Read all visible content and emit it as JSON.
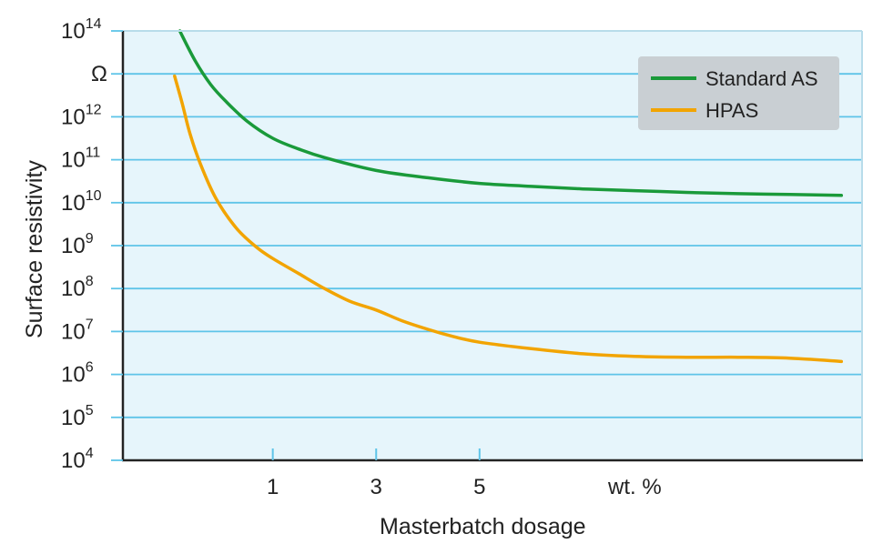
{
  "chart_data": {
    "type": "line",
    "title": "",
    "xlabel": "Masterbatch dosage",
    "ylabel": "Surface resistivity",
    "x_unit_label": "wt. %",
    "x_ticks": [
      1,
      3,
      5
    ],
    "xlim": [
      -1.9,
      12.4
    ],
    "y_scale": "log",
    "ylim_exponent": [
      4,
      14
    ],
    "y_ticks": [
      {
        "label": "10",
        "exp": "14",
        "value": 14
      },
      {
        "label": "Ω",
        "exp": "",
        "value": 13
      },
      {
        "label": "10",
        "exp": "12",
        "value": 12
      },
      {
        "label": "10",
        "exp": "11",
        "value": 11
      },
      {
        "label": "10",
        "exp": "10",
        "value": 10
      },
      {
        "label": "10",
        "exp": "9",
        "value": 9
      },
      {
        "label": "10",
        "exp": "8",
        "value": 8
      },
      {
        "label": "10",
        "exp": "7",
        "value": 7
      },
      {
        "label": "10",
        "exp": "6",
        "value": 6
      },
      {
        "label": "10",
        "exp": "5",
        "value": 5
      },
      {
        "label": "10",
        "exp": "4",
        "value": 4
      }
    ],
    "grid": true,
    "legend_position": "top-right",
    "series": [
      {
        "name": "Standard AS",
        "color": "#1a9a3a",
        "points": [
          [
            -0.8,
            14.0
          ],
          [
            -0.5,
            13.3
          ],
          [
            -0.2,
            12.75
          ],
          [
            0.1,
            12.35
          ],
          [
            0.5,
            11.9
          ],
          [
            1.0,
            11.5
          ],
          [
            1.5,
            11.25
          ],
          [
            2.0,
            11.05
          ],
          [
            3.0,
            10.75
          ],
          [
            4.0,
            10.58
          ],
          [
            5.0,
            10.45
          ],
          [
            6.0,
            10.38
          ],
          [
            7.0,
            10.32
          ],
          [
            8.0,
            10.28
          ],
          [
            9.0,
            10.24
          ],
          [
            10.0,
            10.21
          ],
          [
            11.0,
            10.19
          ],
          [
            12.0,
            10.17
          ]
        ]
      },
      {
        "name": "HPAS",
        "color": "#f2a400",
        "points": [
          [
            -0.9,
            12.95
          ],
          [
            -0.75,
            12.3
          ],
          [
            -0.6,
            11.6
          ],
          [
            -0.4,
            10.9
          ],
          [
            -0.1,
            10.1
          ],
          [
            0.3,
            9.4
          ],
          [
            0.7,
            8.95
          ],
          [
            1.0,
            8.7
          ],
          [
            1.5,
            8.35
          ],
          [
            2.0,
            8.0
          ],
          [
            2.5,
            7.7
          ],
          [
            3.0,
            7.5
          ],
          [
            3.5,
            7.25
          ],
          [
            4.0,
            7.05
          ],
          [
            4.5,
            6.88
          ],
          [
            5.0,
            6.75
          ],
          [
            6.0,
            6.6
          ],
          [
            7.0,
            6.48
          ],
          [
            8.0,
            6.42
          ],
          [
            9.0,
            6.4
          ],
          [
            10.0,
            6.4
          ],
          [
            11.0,
            6.38
          ],
          [
            12.0,
            6.3
          ]
        ]
      }
    ]
  }
}
